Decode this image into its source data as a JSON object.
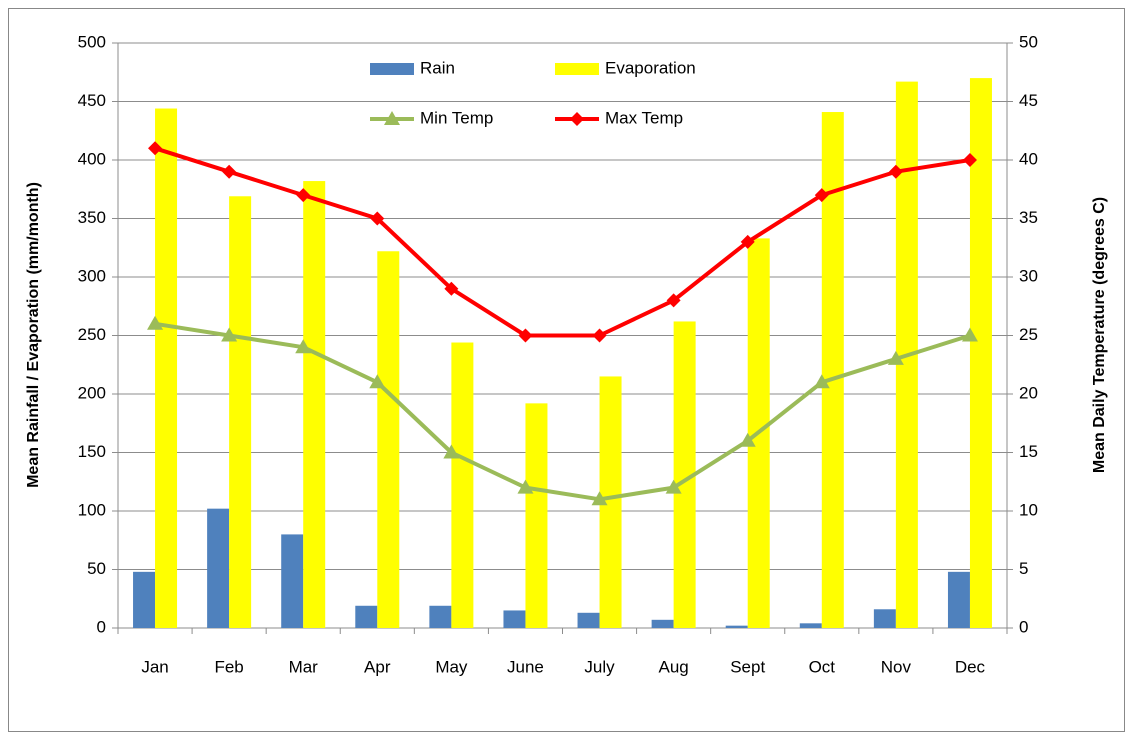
{
  "chart_data": {
    "type": "bar",
    "y_label": "Mean Rainfall  / Evaporation  (mm/month)",
    "y2_label": "Mean Daily Temperature (degrees C)",
    "categories": [
      "Jan",
      "Feb",
      "Mar",
      "Apr",
      "May",
      "June",
      "July",
      "Aug",
      "Sept",
      "Oct",
      "Nov",
      "Dec"
    ],
    "series": [
      {
        "name": "Rain",
        "type": "bar",
        "color": "#4f81bd",
        "values": [
          48,
          102,
          80,
          19,
          19,
          15,
          13,
          7,
          2,
          4,
          16,
          48
        ]
      },
      {
        "name": "Evaporation",
        "type": "bar",
        "color": "#ffff00",
        "values": [
          444,
          369,
          382,
          322,
          244,
          192,
          215,
          262,
          333,
          441,
          467,
          470
        ]
      },
      {
        "name": "Min Temp",
        "type": "line",
        "marker": "triangle",
        "axis": "y2",
        "color": "#9bbb59",
        "values": [
          26,
          25,
          24,
          21,
          15,
          12,
          11,
          12,
          16,
          21,
          23,
          25
        ]
      },
      {
        "name": "Max Temp",
        "type": "line",
        "marker": "diamond",
        "axis": "y2",
        "color": "#ff0000",
        "values": [
          41,
          39,
          37,
          35,
          29,
          25,
          25,
          28,
          33,
          37,
          39,
          40
        ]
      }
    ],
    "ylim": [
      0,
      500
    ],
    "yticks": [
      0,
      50,
      100,
      150,
      200,
      250,
      300,
      350,
      400,
      450,
      500
    ],
    "y2lim": [
      0,
      50
    ],
    "y2ticks": [
      0,
      5,
      10,
      15,
      20,
      25,
      30,
      35,
      40,
      45,
      50
    ],
    "grid": true,
    "legend": "top"
  }
}
